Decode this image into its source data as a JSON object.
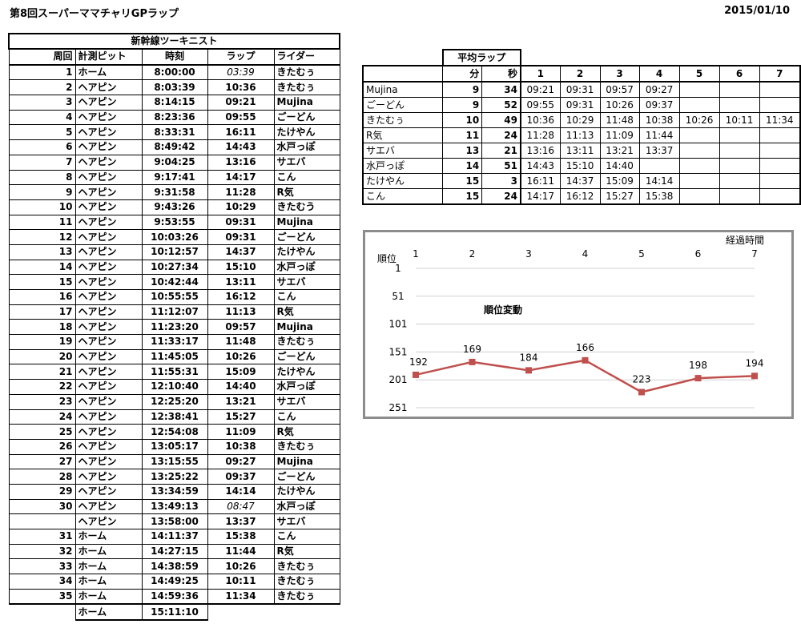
{
  "header": {
    "title": "第8回スーパーママチャリGPラップ",
    "date": "2015/01/10"
  },
  "laps_table": {
    "team": "新幹線ツーキニスト",
    "columns": [
      "周回",
      "計測ピット",
      "時刻",
      "ラップ",
      "ライダー"
    ],
    "rows": [
      {
        "lap": "1",
        "pit": "ホーム",
        "time": "8:00:00",
        "laptime": "03:39",
        "rider": "きたむぅ",
        "italic": true
      },
      {
        "lap": "2",
        "pit": "ヘアピン",
        "time": "8:03:39",
        "laptime": "10:36",
        "rider": "きたむぅ"
      },
      {
        "lap": "3",
        "pit": "ヘアピン",
        "time": "8:14:15",
        "laptime": "09:21",
        "rider": "Mujina"
      },
      {
        "lap": "4",
        "pit": "ヘアピン",
        "time": "8:23:36",
        "laptime": "09:55",
        "rider": "ごーどん"
      },
      {
        "lap": "5",
        "pit": "ヘアピン",
        "time": "8:33:31",
        "laptime": "16:11",
        "rider": "たけやん"
      },
      {
        "lap": "6",
        "pit": "ヘアピン",
        "time": "8:49:42",
        "laptime": "14:43",
        "rider": "水戸っぽ"
      },
      {
        "lap": "7",
        "pit": "ヘアピン",
        "time": "9:04:25",
        "laptime": "13:16",
        "rider": "サエバ"
      },
      {
        "lap": "8",
        "pit": "ヘアピン",
        "time": "9:17:41",
        "laptime": "14:17",
        "rider": "こん"
      },
      {
        "lap": "9",
        "pit": "ヘアピン",
        "time": "9:31:58",
        "laptime": "11:28",
        "rider": "R気"
      },
      {
        "lap": "10",
        "pit": "ヘアピン",
        "time": "9:43:26",
        "laptime": "10:29",
        "rider": "きたむう"
      },
      {
        "lap": "11",
        "pit": "ヘアピン",
        "time": "9:53:55",
        "laptime": "09:31",
        "rider": "Mujina"
      },
      {
        "lap": "12",
        "pit": "ヘアピン",
        "time": "10:03:26",
        "laptime": "09:31",
        "rider": "ごーどん"
      },
      {
        "lap": "13",
        "pit": "ヘアピン",
        "time": "10:12:57",
        "laptime": "14:37",
        "rider": "たけやん"
      },
      {
        "lap": "14",
        "pit": "ヘアピン",
        "time": "10:27:34",
        "laptime": "15:10",
        "rider": "水戸っぽ"
      },
      {
        "lap": "15",
        "pit": "ヘアピン",
        "time": "10:42:44",
        "laptime": "13:11",
        "rider": "サエバ"
      },
      {
        "lap": "16",
        "pit": "ヘアピン",
        "time": "10:55:55",
        "laptime": "16:12",
        "rider": "こん"
      },
      {
        "lap": "17",
        "pit": "ヘアピン",
        "time": "11:12:07",
        "laptime": "11:13",
        "rider": "R気"
      },
      {
        "lap": "18",
        "pit": "ヘアピン",
        "time": "11:23:20",
        "laptime": "09:57",
        "rider": "Mujina"
      },
      {
        "lap": "19",
        "pit": "ヘアピン",
        "time": "11:33:17",
        "laptime": "11:48",
        "rider": "きたむぅ"
      },
      {
        "lap": "20",
        "pit": "ヘアピン",
        "time": "11:45:05",
        "laptime": "10:26",
        "rider": "ごーどん"
      },
      {
        "lap": "21",
        "pit": "ヘアピン",
        "time": "11:55:31",
        "laptime": "15:09",
        "rider": "たけやん"
      },
      {
        "lap": "22",
        "pit": "ヘアピン",
        "time": "12:10:40",
        "laptime": "14:40",
        "rider": "水戸っぽ"
      },
      {
        "lap": "23",
        "pit": "ヘアピン",
        "time": "12:25:20",
        "laptime": "13:21",
        "rider": "サエバ"
      },
      {
        "lap": "24",
        "pit": "ヘアピン",
        "time": "12:38:41",
        "laptime": "15:27",
        "rider": "こん"
      },
      {
        "lap": "25",
        "pit": "ヘアピン",
        "time": "12:54:08",
        "laptime": "11:09",
        "rider": "R気"
      },
      {
        "lap": "26",
        "pit": "ヘアピン",
        "time": "13:05:17",
        "laptime": "10:38",
        "rider": "きたむぅ"
      },
      {
        "lap": "27",
        "pit": "ヘアピン",
        "time": "13:15:55",
        "laptime": "09:27",
        "rider": "Mujina"
      },
      {
        "lap": "28",
        "pit": "ヘアピン",
        "time": "13:25:22",
        "laptime": "09:37",
        "rider": "ごーどん"
      },
      {
        "lap": "29",
        "pit": "ヘアピン",
        "time": "13:34:59",
        "laptime": "14:14",
        "rider": "たけやん"
      },
      {
        "lap": "30",
        "pit": "ヘアピン",
        "time": "13:49:13",
        "laptime": "08:47",
        "rider": "水戸っぽ",
        "italic": true
      },
      {
        "lap": "",
        "pit": "ヘアピン",
        "time": "13:58:00",
        "laptime": "13:37",
        "rider": "サエバ"
      },
      {
        "lap": "31",
        "pit": "ホーム",
        "time": "14:11:37",
        "laptime": "15:38",
        "rider": "こん"
      },
      {
        "lap": "32",
        "pit": "ホーム",
        "time": "14:27:15",
        "laptime": "11:44",
        "rider": "R気"
      },
      {
        "lap": "33",
        "pit": "ホーム",
        "time": "14:38:59",
        "laptime": "10:26",
        "rider": "きたむぅ"
      },
      {
        "lap": "34",
        "pit": "ホーム",
        "time": "14:49:25",
        "laptime": "10:11",
        "rider": "きたむぅ"
      },
      {
        "lap": "35",
        "pit": "ホーム",
        "time": "14:59:36",
        "laptime": "11:34",
        "rider": "きたむぅ"
      },
      {
        "lap": "",
        "pit": "ホーム",
        "time": "15:11:10",
        "laptime": "",
        "rider": ""
      }
    ]
  },
  "avg_table": {
    "title": "平均ラップ",
    "min_header": "分",
    "sec_header": "秒",
    "lap_headers": [
      "1",
      "2",
      "3",
      "4",
      "5",
      "6",
      "7"
    ],
    "rows": [
      {
        "name": "Mujina",
        "min": "9",
        "sec": "34",
        "laps": [
          "09:21",
          "09:31",
          "09:57",
          "09:27",
          "",
          "",
          ""
        ]
      },
      {
        "name": "ごーどん",
        "min": "9",
        "sec": "52",
        "laps": [
          "09:55",
          "09:31",
          "10:26",
          "09:37",
          "",
          "",
          ""
        ]
      },
      {
        "name": "きたむぅ",
        "min": "10",
        "sec": "49",
        "laps": [
          "10:36",
          "10:29",
          "11:48",
          "10:38",
          "10:26",
          "10:11",
          "11:34"
        ]
      },
      {
        "name": "R気",
        "min": "11",
        "sec": "24",
        "laps": [
          "11:28",
          "11:13",
          "11:09",
          "11:44",
          "",
          "",
          ""
        ]
      },
      {
        "name": "サエバ",
        "min": "13",
        "sec": "21",
        "laps": [
          "13:16",
          "13:11",
          "13:21",
          "13:37",
          "",
          "",
          ""
        ]
      },
      {
        "name": "水戸っぽ",
        "min": "14",
        "sec": "51",
        "laps": [
          "14:43",
          "15:10",
          "14:40",
          "",
          "",
          "",
          ""
        ]
      },
      {
        "name": "たけやん",
        "min": "15",
        "sec": "3",
        "laps": [
          "16:11",
          "14:37",
          "15:09",
          "14:14",
          "",
          "",
          ""
        ]
      },
      {
        "name": "こん",
        "min": "15",
        "sec": "24",
        "laps": [
          "14:17",
          "16:12",
          "15:27",
          "15:38",
          "",
          "",
          ""
        ]
      }
    ]
  },
  "chart_data": {
    "type": "line",
    "title": "順位変動",
    "xlabel": "経過時間",
    "ylabel": "順位",
    "x": [
      1,
      2,
      3,
      4,
      5,
      6,
      7
    ],
    "y": [
      192,
      169,
      184,
      166,
      223,
      198,
      194
    ],
    "y_ticks": [
      1,
      51,
      101,
      151,
      201,
      251
    ],
    "ylim": [
      1,
      251
    ],
    "y_inverted": true,
    "x_axis_position": "top",
    "grid": true,
    "line_color": "#c0504d"
  }
}
